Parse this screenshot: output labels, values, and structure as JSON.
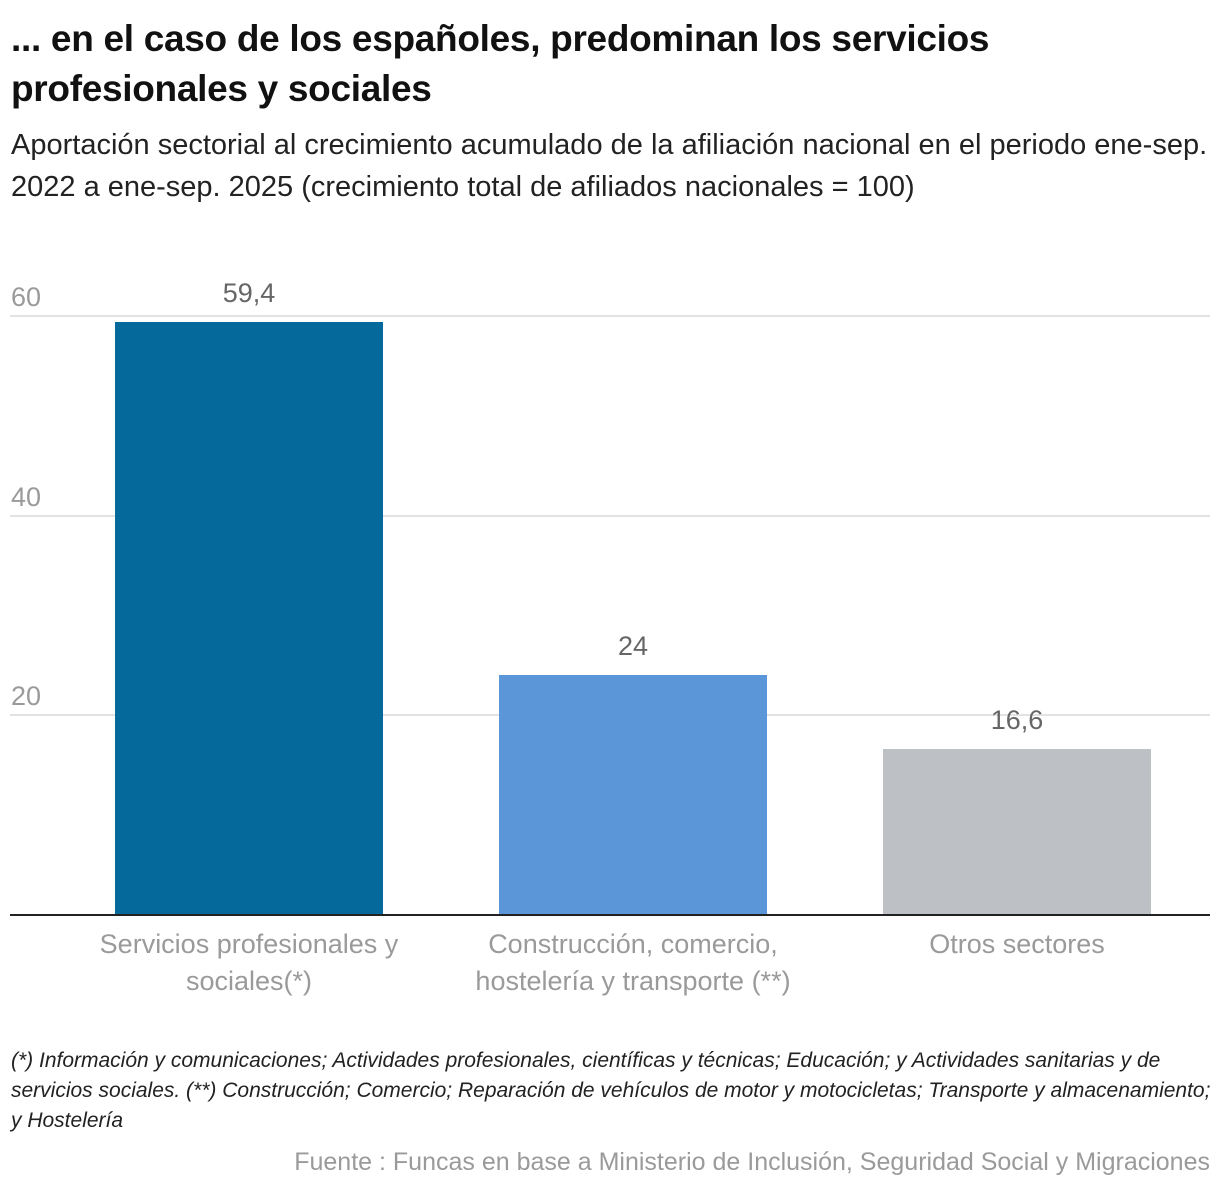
{
  "chart_data": {
    "type": "bar",
    "title": "... en el caso de los españoles, predominan los servicios profesionales y sociales",
    "subtitle": "Aportación sectorial al crecimiento acumulado de la afiliación nacional en el periodo ene-sep. 2022 a ene-sep. 2025 (crecimiento total de afiliados nacionales = 100)",
    "categories": [
      "Servicios profesionales y sociales(*)",
      "Construcción, comercio, hostelería y transporte (**)",
      "Otros sectores"
    ],
    "values": [
      59.4,
      24,
      16.6
    ],
    "data_labels": [
      "59,4",
      "24",
      "16,6"
    ],
    "colors": [
      "#05699b",
      "#5b96d9",
      "#bdc1c5"
    ],
    "ylim": [
      0,
      60
    ],
    "yticks": [
      20,
      40,
      60
    ],
    "ytick_labels": [
      "20",
      "40",
      "60"
    ],
    "grid": true,
    "xlabel": "",
    "ylabel": ""
  },
  "notes": "(*) Información y comunicaciones; Actividades profesionales, científicas y técnicas; Educación; y Actividades sanitarias y de servicios sociales. (**) Construcción; Comercio; Reparación de vehículos de motor y motocicletas; Transporte y almacenamiento; y Hostelería",
  "source": "Fuente : Funcas en base a Ministerio de Inclusión, Seguridad Social y Migraciones"
}
